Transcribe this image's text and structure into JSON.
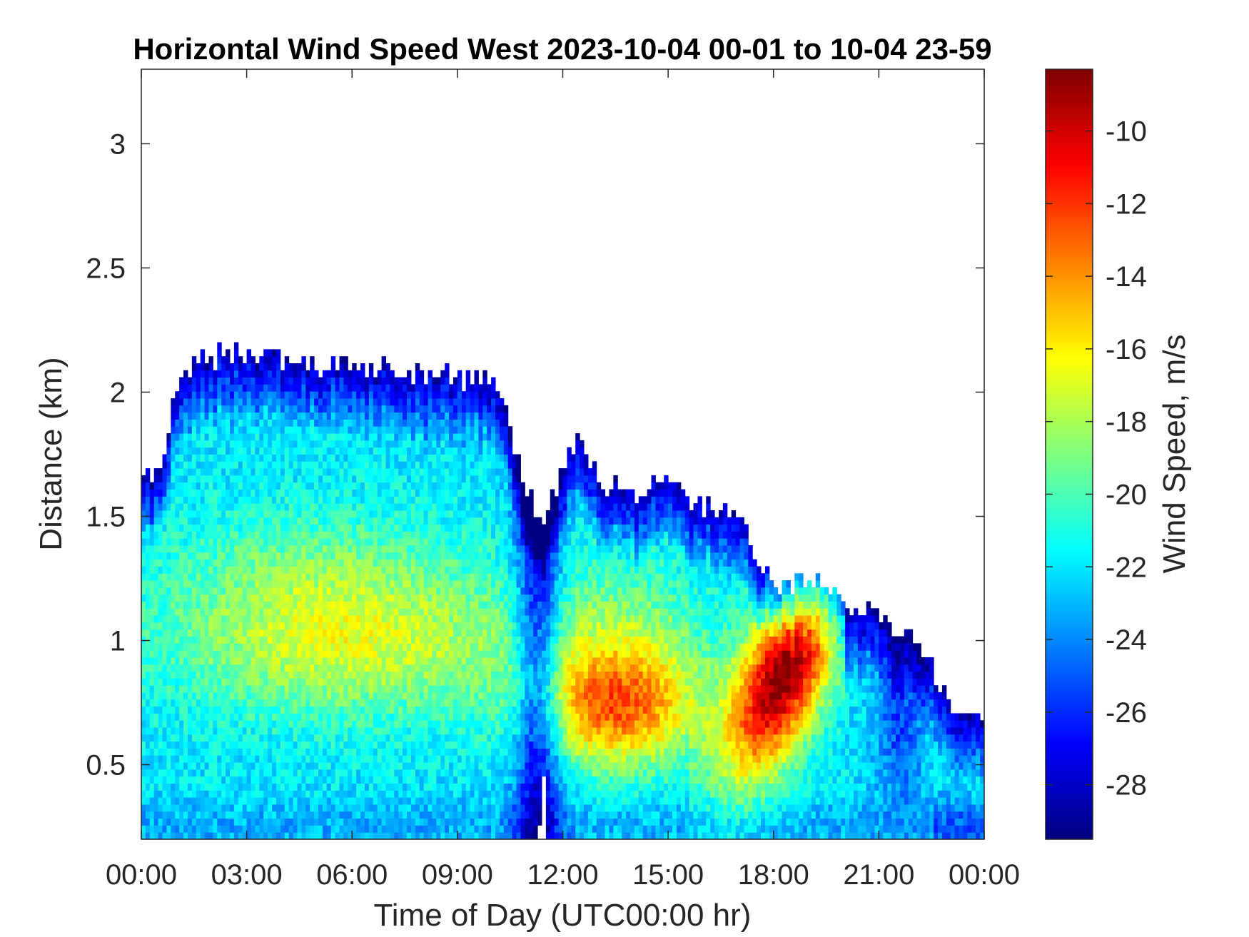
{
  "chart_data": {
    "type": "heatmap",
    "title": "Horizontal Wind Speed West 2023-10-04 00-01 to 10-04 23-59",
    "xlabel": "Time of Day (UTC00:00 hr)",
    "ylabel": "Distance (km)",
    "x_ticks": [
      "00:00",
      "03:00",
      "06:00",
      "09:00",
      "12:00",
      "15:00",
      "18:00",
      "21:00",
      "00:00"
    ],
    "x_tick_values": [
      0,
      3,
      6,
      9,
      12,
      15,
      18,
      21,
      24
    ],
    "y_ticks": [
      "0.5",
      "1",
      "1.5",
      "2",
      "2.5",
      "3"
    ],
    "y_tick_values": [
      0.5,
      1,
      1.5,
      2,
      2.5,
      3
    ],
    "xlim": [
      0,
      24
    ],
    "ylim": [
      0.2,
      3.3
    ],
    "grid": false,
    "colorbar": {
      "label": "Wind Speed, m/s",
      "ticks": [
        "-10",
        "-12",
        "-14",
        "-16",
        "-18",
        "-20",
        "-22",
        "-24",
        "-26",
        "-28"
      ],
      "tick_values": [
        -10,
        -12,
        -14,
        -16,
        -18,
        -20,
        -22,
        -24,
        -26,
        -28
      ],
      "range": [
        -29.5,
        -8.3
      ],
      "colormap": "jet"
    },
    "max_range_km": {
      "time_hr": [
        0,
        0.5,
        1,
        1.5,
        2,
        3,
        4,
        5,
        6,
        7,
        8,
        9,
        10,
        10.5,
        11,
        11.5,
        12,
        12.5,
        13,
        14,
        15,
        15.5,
        16,
        16.5,
        17,
        17.5,
        18,
        18.5,
        19,
        19.5,
        20,
        20.5,
        21,
        21.5,
        22,
        22.5,
        23,
        23.5,
        24
      ],
      "value": [
        1.7,
        1.65,
        2.05,
        2.1,
        2.15,
        2.15,
        2.12,
        2.12,
        2.1,
        2.08,
        2.07,
        2.05,
        2.05,
        1.85,
        1.6,
        1.45,
        1.72,
        1.82,
        1.65,
        1.58,
        1.65,
        1.58,
        1.55,
        1.52,
        1.5,
        1.35,
        1.22,
        1.22,
        1.22,
        1.22,
        1.18,
        1.12,
        1.1,
        1.05,
        1.02,
        0.92,
        0.75,
        0.72,
        0.7
      ]
    },
    "wind_speed_features": [
      {
        "time_hr": [
          16,
          19.5
        ],
        "distance_km": [
          0.4,
          1.1
        ],
        "speed": -9,
        "note_level": "max"
      },
      {
        "time_hr": [
          12.5,
          14.5
        ],
        "distance_km": [
          0.6,
          0.8
        ],
        "speed": -14
      },
      {
        "time_hr": [
          3,
          9
        ],
        "distance_km": [
          0.8,
          1.1
        ],
        "speed": -17
      },
      {
        "time_hr": [
          11,
          11.8
        ],
        "distance_km": [
          0.2,
          1.6
        ],
        "speed": -26
      }
    ]
  }
}
